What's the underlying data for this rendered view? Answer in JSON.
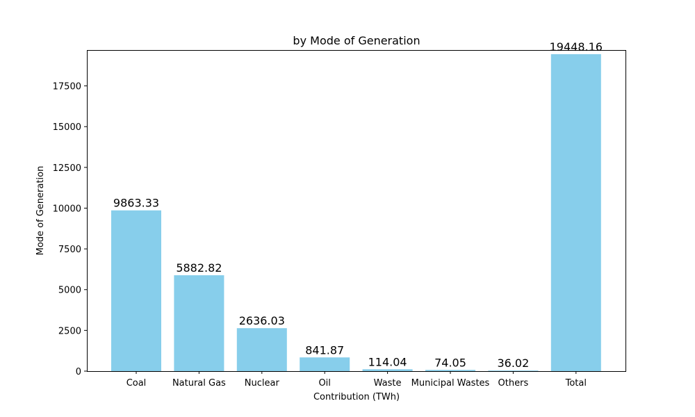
{
  "chart_data": {
    "type": "bar",
    "title": "by Mode of Generation",
    "xlabel": "Contribution (TWh)",
    "ylabel": "Mode of Generation",
    "categories": [
      "Coal",
      "Natural Gas",
      "Nuclear",
      "Oil",
      "Waste",
      "Municipal Wastes",
      "Others",
      "Total"
    ],
    "values": [
      9863.33,
      5882.82,
      2636.03,
      841.87,
      114.04,
      74.05,
      36.02,
      19448.16
    ],
    "data_labels": [
      "9863.33",
      "5882.82",
      "2636.03",
      "841.87",
      "114.04",
      "74.05",
      "36.02",
      "19448.16"
    ],
    "ylim": [
      0,
      19700
    ],
    "yticks": [
      0,
      2500,
      5000,
      7500,
      10000,
      12500,
      15000,
      17500
    ],
    "ytick_labels": [
      "0",
      "2500",
      "5000",
      "7500",
      "10000",
      "12500",
      "15000",
      "17500"
    ],
    "bar_color": "#87ceeb",
    "grid": false,
    "legend": "none"
  }
}
